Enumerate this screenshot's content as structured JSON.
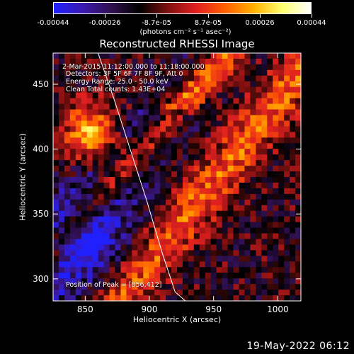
{
  "colorbar": {
    "colors": [
      "#2020ff",
      "#3a1ab0",
      "#301050",
      "#000000",
      "#801010",
      "#e02020",
      "#ff6000",
      "#ffb000",
      "#ffff70",
      "#ffffff"
    ],
    "tick_labels": [
      "-0.00044",
      "-0.00026",
      "-8.7e-05",
      "8.7e-05",
      "0.00026",
      "0.00044"
    ],
    "units": "(photons cm⁻² s⁻¹ asec⁻²)"
  },
  "annotations": {
    "time_range": "2-Mar-2015 11:12:00.000 to 11:18:00.000",
    "detectors": "Detectors: 3F 5F 6F 7F 8F 9F, Att 0",
    "energy": "Energy Range: 25.0 - 50.0 keV",
    "algorithm": "Clean     Total counts: 1.43E+04",
    "peak": "Position of Peak = [856,412]"
  },
  "timestamp": "19-May-2022 06:12",
  "chart_data": {
    "type": "heatmap",
    "title": "Reconstructed RHESSI Image",
    "xlabel": "Heliocentric X (arcsec)",
    "ylabel": "Heliocentric Y (arcsec)",
    "xlim": [
      825,
      1018
    ],
    "ylim": [
      283,
      474
    ],
    "x_ticks": [
      850,
      900,
      950,
      1000
    ],
    "y_ticks": [
      300,
      350,
      400,
      450
    ],
    "value_range": [
      -0.00044,
      0.00044
    ],
    "peak_position": [
      856,
      412
    ],
    "limb_curve": {
      "x": [
        860,
        872,
        885,
        898,
        910,
        920,
        928
      ],
      "y": [
        474,
        440,
        400,
        360,
        320,
        290,
        283
      ]
    }
  }
}
